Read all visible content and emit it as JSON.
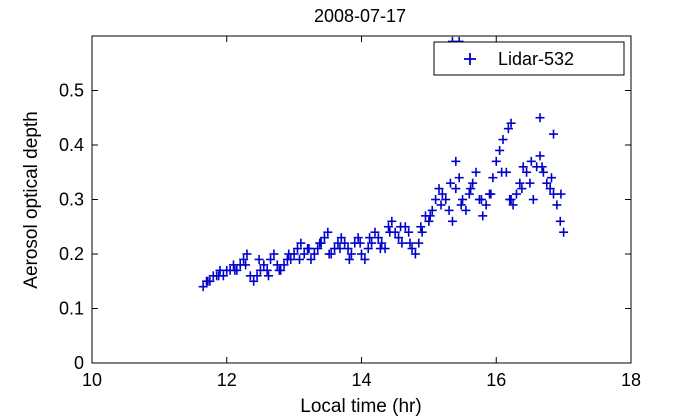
{
  "chart_data": {
    "type": "scatter",
    "title": "2008-07-17",
    "xlabel": "Local time (hr)",
    "ylabel": "Aerosol optical depth",
    "xlim": [
      10,
      18
    ],
    "ylim": [
      0,
      0.6
    ],
    "xticks": [
      10,
      12,
      14,
      16,
      18
    ],
    "yticks": [
      0,
      0.1,
      0.2,
      0.3,
      0.4,
      0.5
    ],
    "xtick_labels": [
      "10",
      "12",
      "14",
      "16",
      "18"
    ],
    "ytick_labels": [
      "0",
      "0.1",
      "0.2",
      "0.3",
      "0.4",
      "0.5"
    ],
    "grid": false,
    "legend_position": "top-right",
    "marker": "+",
    "series": [
      {
        "name": "Lidar-532",
        "color": "#0000cc",
        "x": [
          11.65,
          11.7,
          11.75,
          11.8,
          11.85,
          11.9,
          11.95,
          12.0,
          12.05,
          12.1,
          12.15,
          12.2,
          12.25,
          12.3,
          12.35,
          12.4,
          12.45,
          12.5,
          12.55,
          12.6,
          12.65,
          12.7,
          12.75,
          12.8,
          12.85,
          12.9,
          12.95,
          13.0,
          13.05,
          13.1,
          13.15,
          13.2,
          13.25,
          13.3,
          13.35,
          13.4,
          13.45,
          13.5,
          13.55,
          13.6,
          13.65,
          13.7,
          13.75,
          13.8,
          13.85,
          13.9,
          13.95,
          14.0,
          14.05,
          14.1,
          14.15,
          14.2,
          14.25,
          14.3,
          14.35,
          14.4,
          14.45,
          14.5,
          14.55,
          14.6,
          14.65,
          14.7,
          14.75,
          14.8,
          14.85,
          14.9,
          14.95,
          15.0,
          15.05,
          15.1,
          15.15,
          15.2,
          15.25,
          15.3,
          15.35,
          15.4,
          15.45,
          15.5,
          15.55,
          15.6,
          15.65,
          15.7,
          15.75,
          15.8,
          15.85,
          15.9,
          15.95,
          16.0,
          16.05,
          16.1,
          16.15,
          16.2,
          16.25,
          16.3,
          16.35,
          16.4,
          16.45,
          16.5,
          16.55,
          16.6,
          16.65,
          16.7,
          16.75,
          16.8,
          16.85,
          16.9,
          16.95,
          17.0,
          11.72,
          11.88,
          12.12,
          12.28,
          12.48,
          12.62,
          12.78,
          12.92,
          13.08,
          13.22,
          13.38,
          13.52,
          13.68,
          13.82,
          13.98,
          14.12,
          14.28,
          14.42,
          14.58,
          14.72,
          14.88,
          15.02,
          15.18,
          15.32,
          15.48,
          15.62,
          15.78,
          15.92,
          16.08,
          16.22,
          16.38,
          16.52,
          16.68,
          16.82,
          16.96,
          15.35,
          15.45,
          15.4,
          16.18,
          16.22,
          16.65,
          16.85
        ],
        "y": [
          0.14,
          0.15,
          0.15,
          0.16,
          0.16,
          0.17,
          0.16,
          0.17,
          0.17,
          0.18,
          0.17,
          0.18,
          0.19,
          0.2,
          0.16,
          0.15,
          0.16,
          0.17,
          0.18,
          0.17,
          0.19,
          0.2,
          0.18,
          0.17,
          0.18,
          0.19,
          0.19,
          0.2,
          0.21,
          0.22,
          0.2,
          0.21,
          0.19,
          0.2,
          0.21,
          0.22,
          0.23,
          0.24,
          0.2,
          0.21,
          0.22,
          0.23,
          0.22,
          0.21,
          0.2,
          0.22,
          0.23,
          0.2,
          0.19,
          0.21,
          0.22,
          0.24,
          0.23,
          0.22,
          0.21,
          0.25,
          0.26,
          0.24,
          0.23,
          0.22,
          0.25,
          0.24,
          0.21,
          0.2,
          0.22,
          0.24,
          0.27,
          0.26,
          0.28,
          0.3,
          0.32,
          0.31,
          0.3,
          0.28,
          0.26,
          0.32,
          0.34,
          0.3,
          0.28,
          0.31,
          0.33,
          0.35,
          0.3,
          0.27,
          0.29,
          0.31,
          0.34,
          0.37,
          0.39,
          0.41,
          0.35,
          0.3,
          0.29,
          0.31,
          0.33,
          0.36,
          0.35,
          0.33,
          0.3,
          0.36,
          0.38,
          0.35,
          0.33,
          0.32,
          0.31,
          0.29,
          0.26,
          0.24,
          0.15,
          0.16,
          0.17,
          0.18,
          0.19,
          0.16,
          0.17,
          0.2,
          0.19,
          0.21,
          0.22,
          0.2,
          0.21,
          0.19,
          0.22,
          0.23,
          0.21,
          0.24,
          0.25,
          0.22,
          0.25,
          0.27,
          0.29,
          0.33,
          0.29,
          0.32,
          0.3,
          0.31,
          0.35,
          0.3,
          0.32,
          0.37,
          0.36,
          0.34,
          0.31,
          0.59,
          0.59,
          0.37,
          0.43,
          0.44,
          0.45,
          0.42
        ]
      }
    ]
  }
}
